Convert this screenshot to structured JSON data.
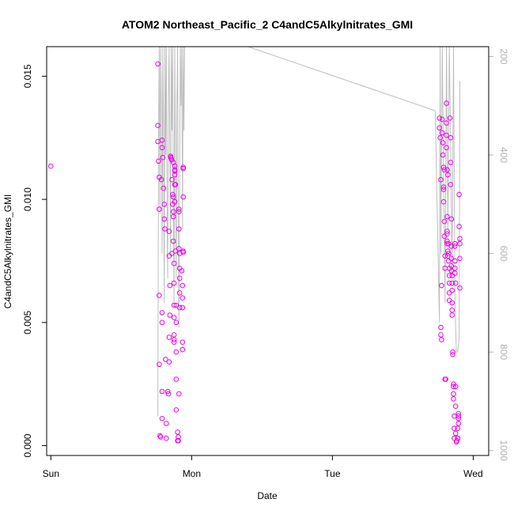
{
  "chart_data": {
    "type": "scatter",
    "title": "ATOM2 Northeast_Pacific_2 C4andC5Alkylnitrates_GMI",
    "xlabel": "Date",
    "ylabel": "C4andC5Alkylnitrates_GMI",
    "xlim": [
      -0.03,
      3.11
    ],
    "ylim": [
      -0.0004,
      0.0162
    ],
    "x_ticks": [
      {
        "value": 0,
        "label": "Sun"
      },
      {
        "value": 1,
        "label": "Mon"
      },
      {
        "value": 2,
        "label": "Tue"
      },
      {
        "value": 3,
        "label": "Wed"
      }
    ],
    "y_ticks": [
      {
        "value": 0.0,
        "label": "0.000"
      },
      {
        "value": 0.005,
        "label": "0.005"
      },
      {
        "value": 0.01,
        "label": "0.010"
      },
      {
        "value": 0.015,
        "label": "0.015"
      }
    ],
    "y2_lim": [
      1010,
      180
    ],
    "y2_ticks": [
      {
        "value": 200,
        "label": "200"
      },
      {
        "value": 400,
        "label": "400"
      },
      {
        "value": 600,
        "label": "600"
      },
      {
        "value": 800,
        "label": "800"
      },
      {
        "value": 1000,
        "label": "1000"
      }
    ],
    "colors": {
      "points": "#ee00ee",
      "pressure_line": "#bebebe",
      "axes": "#000000"
    },
    "series": [
      {
        "type": "scatter",
        "points": [
          [
            0.0,
            0.01135
          ],
          [
            0.76,
            0.0155
          ],
          [
            0.76,
            0.013
          ],
          [
            0.76,
            0.01235
          ],
          [
            0.765,
            0.01155
          ],
          [
            0.77,
            0.0109
          ],
          [
            0.77,
            0.0096
          ],
          [
            0.77,
            0.0061
          ],
          [
            0.77,
            0.0033
          ],
          [
            0.775,
            0.0004
          ],
          [
            0.78,
            0.00035
          ],
          [
            0.79,
            0.0124
          ],
          [
            0.79,
            0.0121
          ],
          [
            0.795,
            0.0117
          ],
          [
            0.785,
            0.0108
          ],
          [
            0.79,
            0.0054
          ],
          [
            0.79,
            0.005
          ],
          [
            0.79,
            0.0022
          ],
          [
            0.79,
            0.0011
          ],
          [
            0.8,
            0.01045
          ],
          [
            0.805,
            0.0098
          ],
          [
            0.805,
            0.0092
          ],
          [
            0.81,
            0.0088
          ],
          [
            0.815,
            0.0035
          ],
          [
            0.82,
            0.0009
          ],
          [
            0.82,
            0.0003
          ],
          [
            0.83,
            0.0022
          ],
          [
            0.835,
            0.0021
          ],
          [
            0.84,
            0.0087
          ],
          [
            0.84,
            0.0077
          ],
          [
            0.845,
            0.0065
          ],
          [
            0.845,
            0.0053
          ],
          [
            0.84,
            0.0044
          ],
          [
            0.84,
            0.0034
          ],
          [
            0.85,
            0.01175
          ],
          [
            0.852,
            0.0117
          ],
          [
            0.856,
            0.01165
          ],
          [
            0.858,
            0.0116
          ],
          [
            0.86,
            0.0108
          ],
          [
            0.865,
            0.0102
          ],
          [
            0.865,
            0.0098
          ],
          [
            0.86,
            0.0078
          ],
          [
            0.87,
            0.0115
          ],
          [
            0.87,
            0.0101
          ],
          [
            0.87,
            0.0095
          ],
          [
            0.87,
            0.0093
          ],
          [
            0.87,
            0.0083
          ],
          [
            0.875,
            0.0074
          ],
          [
            0.875,
            0.0066
          ],
          [
            0.875,
            0.0057
          ],
          [
            0.875,
            0.0052
          ],
          [
            0.875,
            0.0045
          ],
          [
            0.875,
            0.0043
          ],
          [
            0.875,
            0.0042
          ],
          [
            0.88,
            0.01135
          ],
          [
            0.88,
            0.0112
          ],
          [
            0.88,
            0.01115
          ],
          [
            0.88,
            0.011
          ],
          [
            0.88,
            0.0106
          ],
          [
            0.88,
            0.0099
          ],
          [
            0.885,
            0.0106
          ],
          [
            0.885,
            0.0079
          ],
          [
            0.89,
            0.0057
          ],
          [
            0.89,
            0.005
          ],
          [
            0.89,
            0.0038
          ],
          [
            0.89,
            0.0027
          ],
          [
            0.89,
            0.00145
          ],
          [
            0.9,
            0.00055
          ],
          [
            0.905,
            0.00035
          ],
          [
            0.905,
            0.0002
          ],
          [
            0.9,
            0.0002
          ],
          [
            0.91,
            0.0096
          ],
          [
            0.91,
            0.0095
          ],
          [
            0.91,
            0.0088
          ],
          [
            0.91,
            0.008
          ],
          [
            0.915,
            0.0078
          ],
          [
            0.915,
            0.0072
          ],
          [
            0.915,
            0.0068
          ],
          [
            0.915,
            0.0062
          ],
          [
            0.915,
            0.0056
          ],
          [
            0.91,
            0.0021
          ],
          [
            0.93,
            0.0071
          ],
          [
            0.935,
            0.0065
          ],
          [
            0.935,
            0.006
          ],
          [
            0.935,
            0.0056
          ],
          [
            0.935,
            0.0042
          ],
          [
            0.935,
            0.0039
          ],
          [
            0.94,
            0.0113
          ],
          [
            0.94,
            0.01125
          ],
          [
            0.94,
            0.0101
          ],
          [
            0.94,
            0.0079
          ],
          [
            0.94,
            0.00785
          ],
          [
            2.76,
            0.0133
          ],
          [
            2.76,
            0.0129
          ],
          [
            2.765,
            0.0125
          ],
          [
            2.77,
            0.0108
          ],
          [
            2.77,
            0.0048
          ],
          [
            2.77,
            0.0045
          ],
          [
            2.775,
            0.0043
          ],
          [
            2.775,
            0.0065
          ],
          [
            2.78,
            0.01325
          ],
          [
            2.78,
            0.0127
          ],
          [
            2.785,
            0.0123
          ],
          [
            2.785,
            0.0118
          ],
          [
            2.79,
            0.0113
          ],
          [
            2.79,
            0.0105
          ],
          [
            2.79,
            0.0104
          ],
          [
            2.79,
            0.0099
          ],
          [
            2.795,
            0.0112
          ],
          [
            2.795,
            0.0091
          ],
          [
            2.795,
            0.0085
          ],
          [
            2.8,
            0.0077
          ],
          [
            2.8,
            0.0072
          ],
          [
            2.8,
            0.0027
          ],
          [
            2.805,
            0.0027
          ],
          [
            2.81,
            0.0139
          ],
          [
            2.81,
            0.0131
          ],
          [
            2.81,
            0.0126
          ],
          [
            2.81,
            0.0121
          ],
          [
            2.815,
            0.0112
          ],
          [
            2.815,
            0.0093
          ],
          [
            2.815,
            0.0087
          ],
          [
            2.815,
            0.0086
          ],
          [
            2.815,
            0.0083
          ],
          [
            2.815,
            0.0082
          ],
          [
            2.82,
            0.0079
          ],
          [
            2.82,
            0.0077
          ],
          [
            2.82,
            0.011
          ],
          [
            2.825,
            0.0082
          ],
          [
            2.825,
            0.0078
          ],
          [
            2.825,
            0.0075
          ],
          [
            2.83,
            0.0072
          ],
          [
            2.83,
            0.0069
          ],
          [
            2.83,
            0.0066
          ],
          [
            2.83,
            0.0062
          ],
          [
            2.83,
            0.0059
          ],
          [
            2.835,
            0.0133
          ],
          [
            2.84,
            0.0125
          ],
          [
            2.84,
            0.0115
          ],
          [
            2.84,
            0.0106
          ],
          [
            2.845,
            0.0092
          ],
          [
            2.845,
            0.0081
          ],
          [
            2.845,
            0.0076
          ],
          [
            2.845,
            0.0073
          ],
          [
            2.845,
            0.0071
          ],
          [
            2.85,
            0.0069
          ],
          [
            2.85,
            0.0066
          ],
          [
            2.85,
            0.0063
          ],
          [
            2.85,
            0.0058
          ],
          [
            2.85,
            0.0055
          ],
          [
            2.85,
            0.0053
          ],
          [
            2.855,
            0.0038
          ],
          [
            2.855,
            0.0037
          ],
          [
            2.86,
            0.0025
          ],
          [
            2.86,
            0.0024
          ],
          [
            2.86,
            0.0021
          ],
          [
            2.86,
            0.0019
          ],
          [
            2.865,
            0.0012
          ],
          [
            2.865,
            0.0007
          ],
          [
            2.865,
            0.0003
          ],
          [
            2.87,
            0.0082
          ],
          [
            2.87,
            0.0081
          ],
          [
            2.87,
            0.0075
          ],
          [
            2.87,
            0.0072
          ],
          [
            2.87,
            0.007
          ],
          [
            2.875,
            0.0066
          ],
          [
            2.875,
            0.0024
          ],
          [
            2.875,
            0.0016
          ],
          [
            2.875,
            0.0005
          ],
          [
            2.88,
            0.00015
          ],
          [
            2.885,
            0.0002
          ],
          [
            2.89,
            0.0003
          ],
          [
            2.89,
            0.0003
          ],
          [
            2.89,
            0.0007
          ],
          [
            2.895,
            0.0009
          ],
          [
            2.895,
            0.0011
          ],
          [
            2.895,
            0.0012
          ],
          [
            2.895,
            0.0013
          ],
          [
            2.9,
            0.0102
          ],
          [
            2.9,
            0.0089
          ],
          [
            2.905,
            0.0084
          ],
          [
            2.905,
            0.0082
          ],
          [
            2.905,
            0.0076
          ],
          [
            2.905,
            0.0064
          ]
        ]
      },
      {
        "type": "line",
        "axis": "secondary",
        "points": [
          [
            0.76,
            930
          ],
          [
            0.765,
            350
          ],
          [
            0.77,
            180
          ],
          [
            0.775,
            520
          ],
          [
            0.78,
            180
          ],
          [
            0.785,
            300
          ],
          [
            0.79,
            600
          ],
          [
            0.795,
            180
          ],
          [
            0.8,
            350
          ],
          [
            0.805,
            700
          ],
          [
            0.81,
            180
          ],
          [
            0.815,
            400
          ],
          [
            0.82,
            180
          ],
          [
            0.825,
            500
          ],
          [
            0.83,
            650
          ],
          [
            0.835,
            280
          ],
          [
            0.84,
            180
          ],
          [
            0.845,
            400
          ],
          [
            0.85,
            600
          ],
          [
            0.855,
            180
          ],
          [
            0.86,
            350
          ],
          [
            0.865,
            180
          ],
          [
            0.87,
            500
          ],
          [
            0.875,
            700
          ],
          [
            0.88,
            180
          ],
          [
            0.885,
            400
          ],
          [
            0.89,
            650
          ],
          [
            0.895,
            300
          ],
          [
            0.9,
            180
          ],
          [
            0.905,
            550
          ],
          [
            0.91,
            750
          ],
          [
            0.915,
            420
          ],
          [
            0.92,
            180
          ],
          [
            0.925,
            300
          ],
          [
            0.93,
            180
          ],
          [
            0.935,
            550
          ],
          [
            0.94,
            180
          ],
          [
            0.945,
            350
          ],
          [
            0.95,
            180
          ],
          [
            1.4,
            180
          ],
          [
            2.73,
            310
          ],
          [
            2.76,
            740
          ],
          [
            2.765,
            180
          ],
          [
            2.77,
            600
          ],
          [
            2.78,
            180
          ],
          [
            2.79,
            450
          ],
          [
            2.8,
            700
          ],
          [
            2.81,
            180
          ],
          [
            2.82,
            550
          ],
          [
            2.83,
            180
          ],
          [
            2.84,
            380
          ],
          [
            2.85,
            650
          ],
          [
            2.86,
            180
          ],
          [
            2.87,
            700
          ],
          [
            2.88,
            800
          ],
          [
            2.89,
            800
          ],
          [
            2.9,
            770
          ],
          [
            2.905,
            250
          ]
        ]
      }
    ]
  }
}
